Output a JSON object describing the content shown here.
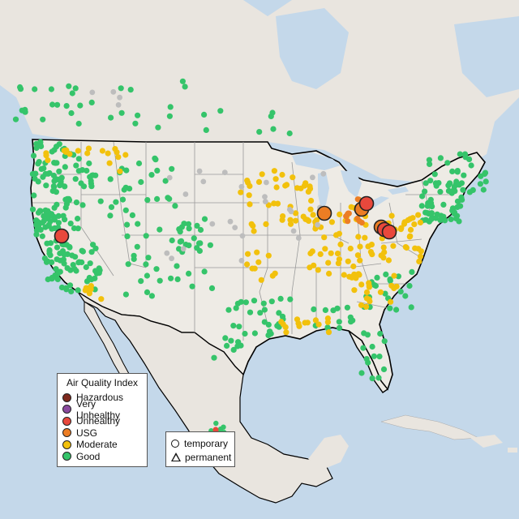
{
  "map": {
    "legend": {
      "title": "Air Quality Index",
      "items": [
        {
          "label": "Hazardous",
          "color": "#7e2a1e"
        },
        {
          "label": "Very Unhealthy",
          "color": "#8a4a9e"
        },
        {
          "label": "Unhealthy",
          "color": "#e8483c"
        },
        {
          "label": "USG",
          "color": "#ec7d24"
        },
        {
          "label": "Moderate",
          "color": "#f2c10c"
        },
        {
          "label": "Good",
          "color": "#35c46a"
        }
      ]
    },
    "shape_legend": {
      "items": [
        {
          "label": "temporary",
          "icon": "circle-icon"
        },
        {
          "label": "permanent",
          "icon": "triangle-icon"
        }
      ]
    },
    "colors": {
      "ocean": "#c4d8ea",
      "land": "#e9e5df",
      "us_land": "#eeebe5",
      "state_border": "#9a9a9a",
      "country_border": "#000000",
      "no_data": "#bdbdbd"
    }
  }
}
